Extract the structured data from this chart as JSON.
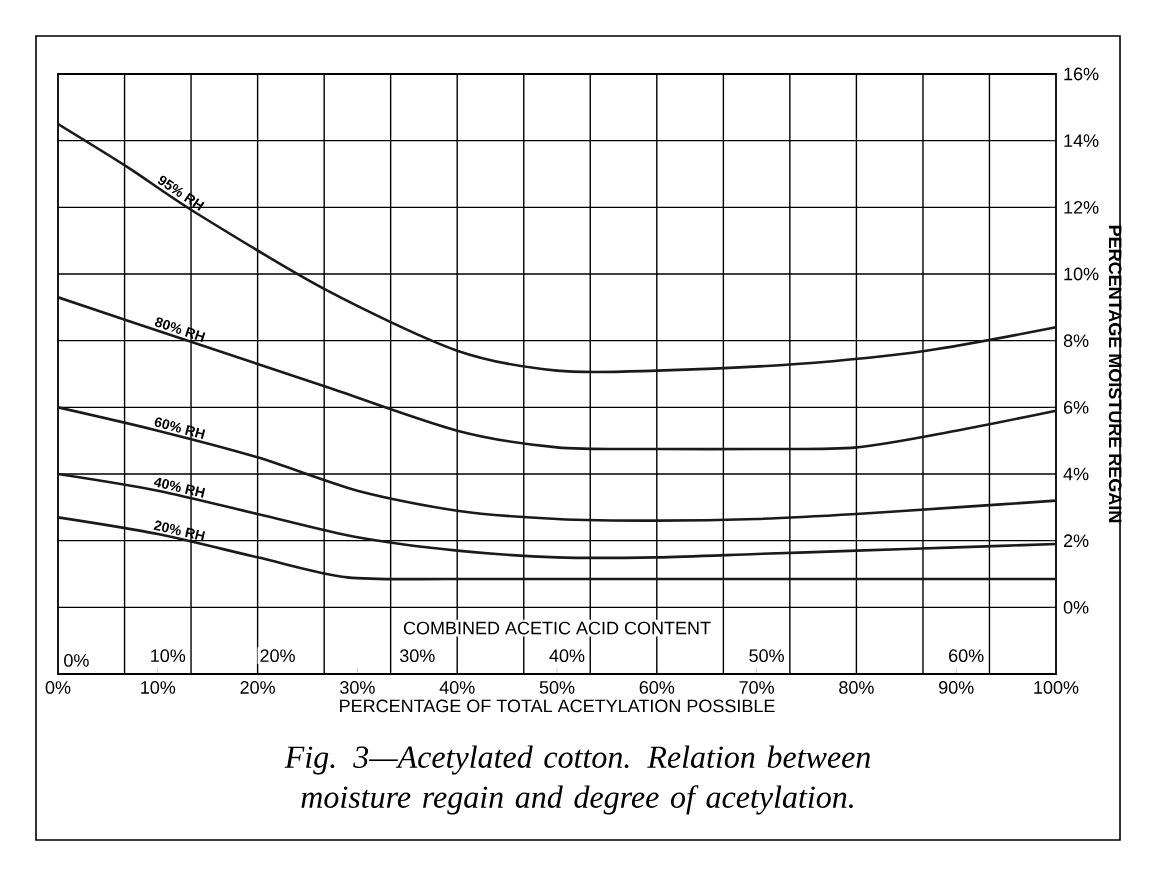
{
  "chart_data": {
    "type": "line",
    "xlabel": "PERCENTAGE OF TOTAL ACETYLATION POSSIBLE",
    "ylabel": "PERCENTAGE MOISTURE REGAIN",
    "annotations": [
      "Fig. 3—Acetylated cotton.  Relation between moisture regain and degree of acetylation.",
      "COMBINED ACETIC ACID CONTENT",
      "0%",
      {
        "text": "10%",
        "x": 11,
        "y": -1.45
      },
      {
        "text": "20%",
        "x": 22,
        "y": -1.45
      },
      {
        "text": "30%",
        "x": 36,
        "y": -1.45
      },
      {
        "text": "40%",
        "x": 51,
        "y": -1.45
      },
      {
        "text": "50%",
        "x": 71,
        "y": -1.45
      },
      {
        "text": "60%",
        "x": 91,
        "y": -1.45
      }
    ],
    "xlim": [
      0,
      100
    ],
    "ylim": [
      -2,
      16
    ],
    "xticks": [
      {
        "value": 0,
        "label": "0%"
      },
      {
        "value": 10,
        "label": "10%"
      },
      {
        "value": 20,
        "label": "20%"
      },
      {
        "value": 30,
        "label": "30%"
      },
      {
        "value": 40,
        "label": "40%"
      },
      {
        "value": 50,
        "label": "50%"
      },
      {
        "value": 60,
        "label": "60%"
      },
      {
        "value": 70,
        "label": "70%"
      },
      {
        "value": 80,
        "label": "80%"
      },
      {
        "value": 90,
        "label": "90%"
      },
      {
        "value": 100,
        "label": "100%"
      },
      {
        "value": 6.67,
        "label": null
      },
      {
        "value": 13.33,
        "label": null
      },
      {
        "value": 20,
        "label": null
      },
      {
        "value": 26.67,
        "label": null
      },
      {
        "value": 33.33,
        "label": null
      },
      {
        "value": 40,
        "label": null
      },
      {
        "value": 46.67,
        "label": null
      },
      {
        "value": 53.33,
        "label": null
      },
      {
        "value": 60,
        "label": null
      },
      {
        "value": 66.67,
        "label": null
      },
      {
        "value": 73.33,
        "label": null
      },
      {
        "value": 80,
        "label": null
      },
      {
        "value": 86.67,
        "label": null
      },
      {
        "value": 93.33,
        "label": null
      }
    ],
    "yticks": [
      {
        "value": 0,
        "label": "0%"
      },
      {
        "value": 2,
        "label": "2%"
      },
      {
        "value": 4,
        "label": "4%"
      },
      {
        "value": 6,
        "label": "6%"
      },
      {
        "value": 8,
        "label": "8%"
      },
      {
        "value": 10,
        "label": "10%"
      },
      {
        "value": 12,
        "label": "12%"
      },
      {
        "value": 14,
        "label": "14%"
      },
      {
        "value": 16,
        "label": "16%"
      }
    ],
    "grid": true,
    "legend": false,
    "marker": "none",
    "line_style": "solid",
    "series": [
      {
        "name": "95% RH",
        "color": "#1a1a1a",
        "x": [
          0,
          7,
          14,
          27,
          40,
          50,
          60,
          74,
          87,
          100
        ],
        "values": [
          14.5,
          13.2,
          11.8,
          9.5,
          7.7,
          7.1,
          7.1,
          7.3,
          7.7,
          8.4
        ]
      },
      {
        "name": "80% RH",
        "color": "#1a1a1a",
        "x": [
          0,
          14,
          27,
          40,
          50,
          60,
          70,
          80,
          90,
          100
        ],
        "values": [
          9.3,
          7.9,
          6.6,
          5.3,
          4.8,
          4.75,
          4.75,
          4.8,
          5.3,
          5.9
        ]
      },
      {
        "name": "60% RH",
        "color": "#1a1a1a",
        "x": [
          0,
          10,
          20,
          30,
          40,
          50,
          60,
          70,
          80,
          90,
          100
        ],
        "values": [
          6.0,
          5.3,
          4.5,
          3.5,
          2.9,
          2.65,
          2.6,
          2.65,
          2.8,
          3.0,
          3.2
        ]
      },
      {
        "name": "40% RH",
        "color": "#1a1a1a",
        "x": [
          0,
          10,
          20,
          30,
          40,
          50,
          60,
          70,
          80,
          90,
          100
        ],
        "values": [
          4.0,
          3.5,
          2.8,
          2.1,
          1.7,
          1.5,
          1.5,
          1.6,
          1.7,
          1.8,
          1.9
        ]
      },
      {
        "name": "20% RH",
        "color": "#1a1a1a",
        "x": [
          0,
          10,
          20,
          29,
          40,
          60,
          80,
          100
        ],
        "values": [
          2.7,
          2.2,
          1.5,
          0.9,
          0.85,
          0.85,
          0.85,
          0.85
        ]
      }
    ]
  }
}
